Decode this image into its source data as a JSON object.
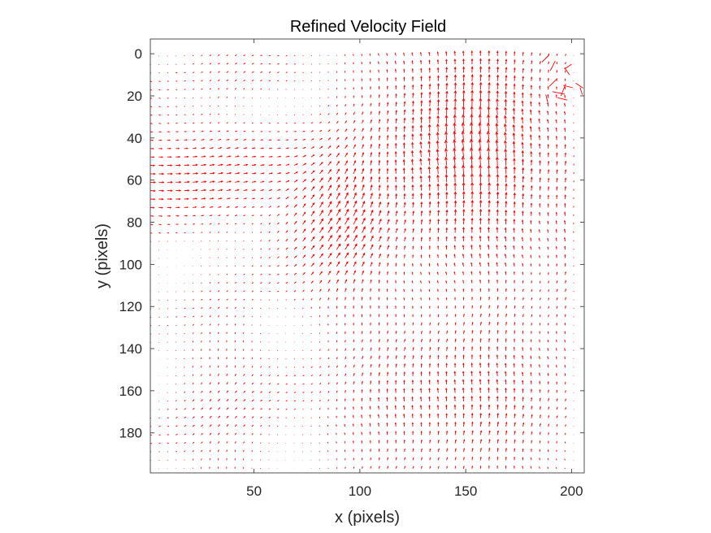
{
  "chart_data": {
    "type": "quiver",
    "title": "Refined Velocity Field",
    "xlabel": "x (pixels)",
    "ylabel": "y (pixels)",
    "xlim": [
      1,
      206
    ],
    "ylim": [
      199,
      -7
    ],
    "y_direction": "reversed",
    "x_ticks": [
      "50",
      "100",
      "150",
      "200"
    ],
    "x_tick_values": [
      50,
      100,
      150,
      200
    ],
    "y_ticks": [
      "0",
      "20",
      "40",
      "60",
      "80",
      "100",
      "120",
      "140",
      "160",
      "180"
    ],
    "y_tick_values": [
      0,
      20,
      40,
      60,
      80,
      100,
      120,
      140,
      160,
      180
    ],
    "grid": false,
    "box": true,
    "arrow_color": "#ff0000",
    "grid_spacing": 4,
    "field_description": [
      {
        "region": "left band y 35-80",
        "direction": "rightward",
        "magnitude": "moderate"
      },
      {
        "region": "center x 70-110 y 50-110",
        "direction": "up-right diagonal",
        "magnitude": "large"
      },
      {
        "region": "x 110-185 y 0-130",
        "direction": "upward",
        "magnitude": "large"
      },
      {
        "region": "x 100-190 y 130-199",
        "direction": "upward",
        "magnitude": "moderate"
      },
      {
        "region": "x 1-70 y 120-199",
        "direction": "up-right",
        "magnitude": "small"
      },
      {
        "region": "top-right corner x 188-206 y 5-25",
        "direction": "chaotic",
        "magnitude": "large"
      }
    ]
  }
}
